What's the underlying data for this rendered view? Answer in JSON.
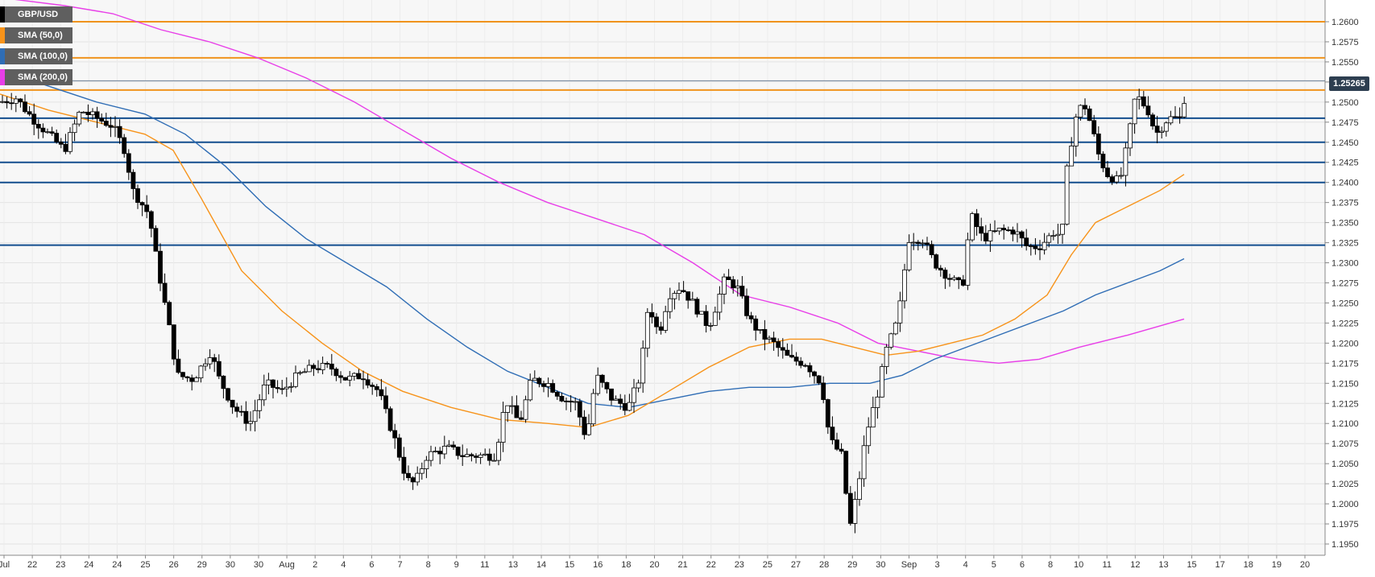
{
  "chart_data": {
    "type": "candlestick",
    "instrument": "GBP/USD",
    "legend": [
      {
        "label": "GBP/USD",
        "color": "#000000"
      },
      {
        "label": "SMA (50,0)",
        "color": "#f7931a"
      },
      {
        "label": "SMA (100,0)",
        "color": "#2f6db5"
      },
      {
        "label": "SMA (200,0)",
        "color": "#e83ee8"
      }
    ],
    "current_price": "1.25265",
    "ylim": [
      1.194,
      1.263
    ],
    "y_ticks": [
      "1.1950",
      "1.1975",
      "1.2000",
      "1.2025",
      "1.2050",
      "1.2075",
      "1.2100",
      "1.2125",
      "1.2150",
      "1.2175",
      "1.2200",
      "1.2225",
      "1.2250",
      "1.2275",
      "1.2300",
      "1.2325",
      "1.2350",
      "1.2375",
      "1.2400",
      "1.2425",
      "1.2450",
      "1.2475",
      "1.2500",
      "1.2525",
      "1.2550",
      "1.2575",
      "1.2600"
    ],
    "x_labels": [
      "Jul",
      "22",
      "23",
      "24",
      "24",
      "25",
      "26",
      "29",
      "30",
      "30",
      "Aug",
      "2",
      "4",
      "6",
      "7",
      "8",
      "9",
      "11",
      "13",
      "14",
      "15",
      "16",
      "18",
      "20",
      "21",
      "22",
      "23",
      "25",
      "27",
      "28",
      "29",
      "30",
      "Sep",
      "3",
      "4",
      "5",
      "6",
      "8",
      "10",
      "11",
      "12",
      "13",
      "15",
      "17",
      "18",
      "19",
      "20"
    ],
    "resistance_levels": [
      1.26,
      1.2555,
      1.2515
    ],
    "support_levels": [
      1.248,
      1.245,
      1.2425,
      1.24,
      1.2322
    ],
    "price_path": [
      [
        0,
        1.25
      ],
      [
        20,
        1.2505
      ],
      [
        40,
        1.248
      ],
      [
        60,
        1.246
      ],
      [
        80,
        1.244
      ],
      [
        100,
        1.249
      ],
      [
        120,
        1.248
      ],
      [
        140,
        1.247
      ],
      [
        155,
        1.244
      ],
      [
        165,
        1.239
      ],
      [
        185,
        1.236
      ],
      [
        195,
        1.23
      ],
      [
        210,
        1.222
      ],
      [
        220,
        1.216
      ],
      [
        240,
        1.2155
      ],
      [
        262,
        1.219
      ],
      [
        270,
        1.216
      ],
      [
        290,
        1.212
      ],
      [
        310,
        1.21
      ],
      [
        330,
        1.215
      ],
      [
        350,
        1.214
      ],
      [
        370,
        1.216
      ],
      [
        390,
        1.217
      ],
      [
        410,
        1.217
      ],
      [
        430,
        1.2155
      ],
      [
        450,
        1.216
      ],
      [
        470,
        1.214
      ],
      [
        490,
        1.208
      ],
      [
        505,
        1.203
      ],
      [
        515,
        1.2025
      ],
      [
        530,
        1.206
      ],
      [
        555,
        1.207
      ],
      [
        575,
        1.206
      ],
      [
        600,
        1.206
      ],
      [
        615,
        1.206
      ],
      [
        628,
        1.213
      ],
      [
        645,
        1.21
      ],
      [
        660,
        1.2155
      ],
      [
        680,
        1.215
      ],
      [
        700,
        1.213
      ],
      [
        715,
        1.2125
      ],
      [
        728,
        1.208
      ],
      [
        740,
        1.216
      ],
      [
        760,
        1.213
      ],
      [
        780,
        1.212
      ],
      [
        795,
        1.216
      ],
      [
        805,
        1.225
      ],
      [
        818,
        1.221
      ],
      [
        830,
        1.226
      ],
      [
        845,
        1.227
      ],
      [
        860,
        1.225
      ],
      [
        880,
        1.222
      ],
      [
        900,
        1.228
      ],
      [
        915,
        1.227
      ],
      [
        930,
        1.223
      ],
      [
        945,
        1.221
      ],
      [
        960,
        1.22
      ],
      [
        980,
        1.218
      ],
      [
        1000,
        1.2175
      ],
      [
        1020,
        1.215
      ],
      [
        1030,
        1.208
      ],
      [
        1045,
        1.206
      ],
      [
        1055,
        1.197
      ],
      [
        1065,
        1.202
      ],
      [
        1075,
        1.2085
      ],
      [
        1090,
        1.214
      ],
      [
        1100,
        1.219
      ],
      [
        1115,
        1.223
      ],
      [
        1128,
        1.233
      ],
      [
        1145,
        1.233
      ],
      [
        1160,
        1.23
      ],
      [
        1180,
        1.228
      ],
      [
        1195,
        1.227
      ],
      [
        1205,
        1.236
      ],
      [
        1220,
        1.233
      ],
      [
        1240,
        1.234
      ],
      [
        1260,
        1.234
      ],
      [
        1275,
        1.232
      ],
      [
        1290,
        1.232
      ],
      [
        1310,
        1.234
      ],
      [
        1318,
        1.233
      ],
      [
        1325,
        1.242
      ],
      [
        1335,
        1.248
      ],
      [
        1345,
        1.25
      ],
      [
        1355,
        1.247
      ],
      [
        1365,
        1.243
      ],
      [
        1375,
        1.241
      ],
      [
        1390,
        1.24
      ],
      [
        1400,
        1.245
      ],
      [
        1410,
        1.251
      ],
      [
        1425,
        1.249
      ],
      [
        1435,
        1.246
      ],
      [
        1450,
        1.248
      ],
      [
        1465,
        1.248
      ],
      [
        1475,
        1.2526
      ]
    ],
    "sma50_path": [
      [
        0,
        1.251
      ],
      [
        60,
        1.249
      ],
      [
        120,
        1.2475
      ],
      [
        180,
        1.246
      ],
      [
        215,
        1.244
      ],
      [
        250,
        1.238
      ],
      [
        300,
        1.229
      ],
      [
        350,
        1.224
      ],
      [
        400,
        1.22
      ],
      [
        450,
        1.2165
      ],
      [
        500,
        1.214
      ],
      [
        560,
        1.212
      ],
      [
        620,
        1.2105
      ],
      [
        680,
        1.21
      ],
      [
        730,
        1.2095
      ],
      [
        780,
        1.211
      ],
      [
        830,
        1.214
      ],
      [
        880,
        1.217
      ],
      [
        930,
        1.2195
      ],
      [
        980,
        1.2205
      ],
      [
        1020,
        1.2205
      ],
      [
        1060,
        1.2195
      ],
      [
        1100,
        1.2185
      ],
      [
        1140,
        1.219
      ],
      [
        1180,
        1.22
      ],
      [
        1220,
        1.221
      ],
      [
        1260,
        1.223
      ],
      [
        1300,
        1.226
      ],
      [
        1330,
        1.231
      ],
      [
        1360,
        1.235
      ],
      [
        1400,
        1.237
      ],
      [
        1440,
        1.239
      ],
      [
        1470,
        1.241
      ]
    ],
    "sma100_path": [
      [
        0,
        1.254
      ],
      [
        60,
        1.252
      ],
      [
        120,
        1.25
      ],
      [
        180,
        1.2485
      ],
      [
        230,
        1.246
      ],
      [
        280,
        1.242
      ],
      [
        330,
        1.237
      ],
      [
        380,
        1.233
      ],
      [
        430,
        1.23
      ],
      [
        480,
        1.227
      ],
      [
        530,
        1.223
      ],
      [
        580,
        1.2195
      ],
      [
        630,
        1.2165
      ],
      [
        680,
        1.2145
      ],
      [
        730,
        1.2125
      ],
      [
        780,
        1.212
      ],
      [
        830,
        1.213
      ],
      [
        880,
        1.214
      ],
      [
        930,
        1.2145
      ],
      [
        980,
        1.2145
      ],
      [
        1030,
        1.215
      ],
      [
        1080,
        1.215
      ],
      [
        1120,
        1.216
      ],
      [
        1160,
        1.218
      ],
      [
        1200,
        1.2195
      ],
      [
        1240,
        1.221
      ],
      [
        1280,
        1.2225
      ],
      [
        1320,
        1.224
      ],
      [
        1360,
        1.226
      ],
      [
        1400,
        1.2275
      ],
      [
        1440,
        1.229
      ],
      [
        1470,
        1.2305
      ]
    ],
    "sma200_path": [
      [
        0,
        1.263
      ],
      [
        80,
        1.262
      ],
      [
        140,
        1.261
      ],
      [
        200,
        1.259
      ],
      [
        260,
        1.2575
      ],
      [
        320,
        1.2555
      ],
      [
        380,
        1.253
      ],
      [
        440,
        1.25
      ],
      [
        500,
        1.2465
      ],
      [
        560,
        1.243
      ],
      [
        620,
        1.24
      ],
      [
        680,
        1.2375
      ],
      [
        740,
        1.2355
      ],
      [
        800,
        1.2335
      ],
      [
        860,
        1.23
      ],
      [
        920,
        1.226
      ],
      [
        980,
        1.2245
      ],
      [
        1040,
        1.2225
      ],
      [
        1090,
        1.22
      ],
      [
        1140,
        1.219
      ],
      [
        1190,
        1.218
      ],
      [
        1240,
        1.2175
      ],
      [
        1290,
        1.218
      ],
      [
        1340,
        1.2195
      ],
      [
        1400,
        1.221
      ],
      [
        1470,
        1.223
      ]
    ]
  }
}
